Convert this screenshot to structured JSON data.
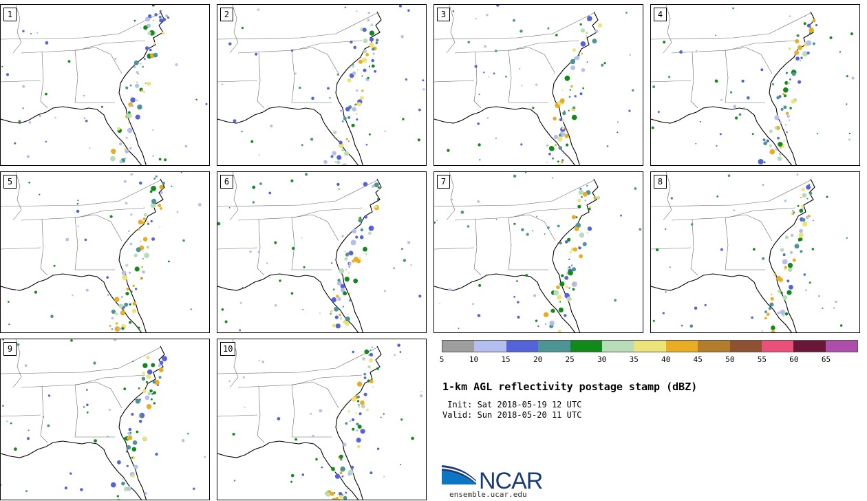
{
  "panels": [
    {
      "label": "1"
    },
    {
      "label": "2"
    },
    {
      "label": "3"
    },
    {
      "label": "4"
    },
    {
      "label": "5"
    },
    {
      "label": "6"
    },
    {
      "label": "7"
    },
    {
      "label": "8"
    },
    {
      "label": "9"
    },
    {
      "label": "10"
    }
  ],
  "colorbar": {
    "colors": [
      "#9e9e9e",
      "#b4bff0",
      "#5563d8",
      "#4e9494",
      "#11891b",
      "#b8dcb8",
      "#ece37a",
      "#e8ad22",
      "#b47d2c",
      "#8e5233",
      "#ea5079",
      "#6a1737",
      "#ad4eaa"
    ],
    "ticks": [
      "5",
      "10",
      "15",
      "20",
      "25",
      "30",
      "35",
      "40",
      "45",
      "50",
      "55",
      "60",
      "65"
    ]
  },
  "title": "1-km AGL reflectivity postage stamp (dBZ)",
  "init": " Init: Sat 2018-05-19 12 UTC",
  "valid": "Valid: Sun 2018-05-20 11 UTC",
  "logo": {
    "name": "NCAR",
    "url_text": "ensemble.ucar.edu"
  }
}
